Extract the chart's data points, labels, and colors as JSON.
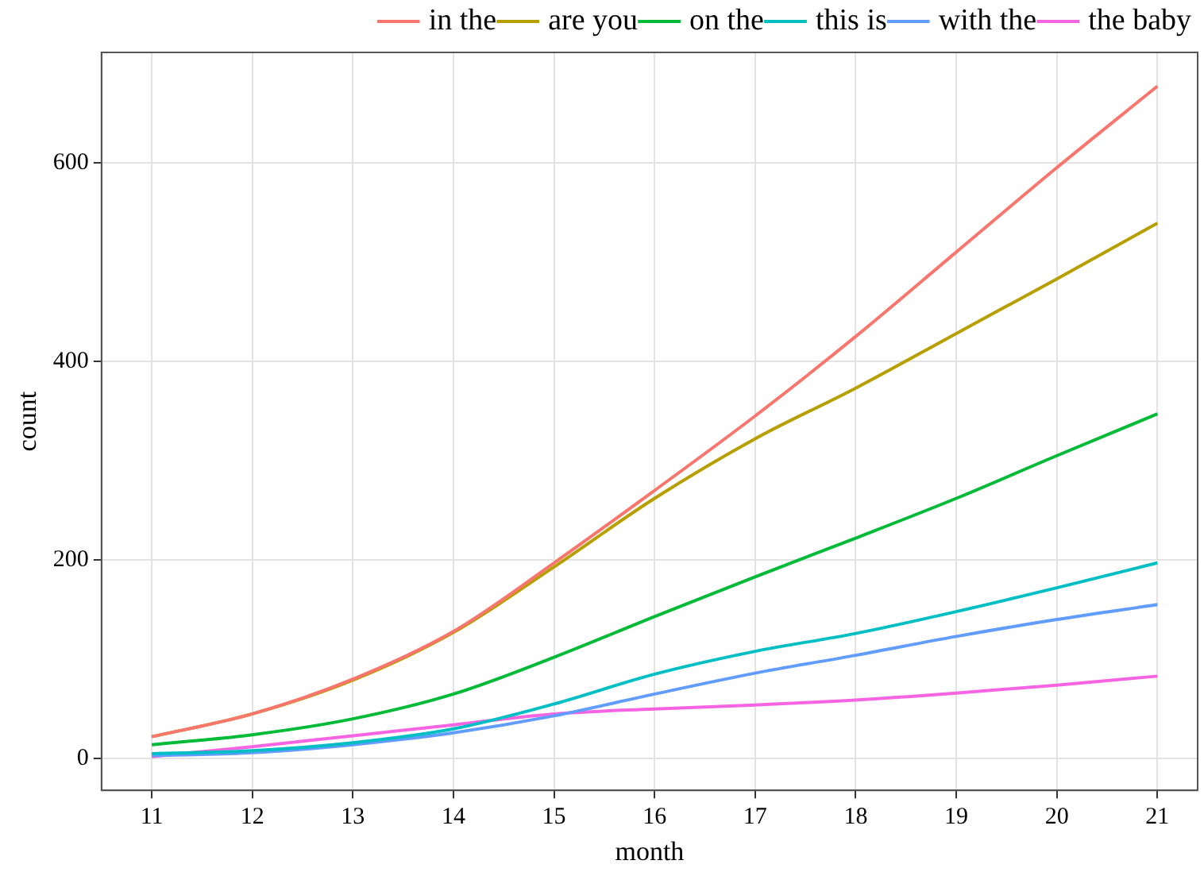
{
  "chart_data": {
    "type": "line",
    "xlabel": "month",
    "ylabel": "count",
    "x": [
      11,
      12,
      13,
      14,
      15,
      16,
      17,
      18,
      19,
      20,
      21
    ],
    "series": [
      {
        "name": "in the",
        "color": "#f8766d",
        "values": [
          22,
          45,
          80,
          128,
          197,
          270,
          345,
          425,
          510,
          595,
          677
        ]
      },
      {
        "name": "are you",
        "color": "#b79f00",
        "values": [
          22,
          45,
          79,
          127,
          193,
          262,
          322,
          373,
          428,
          483,
          539
        ]
      },
      {
        "name": "on the",
        "color": "#00ba38",
        "values": [
          14,
          24,
          40,
          65,
          102,
          143,
          183,
          222,
          262,
          305,
          347
        ]
      },
      {
        "name": "this is",
        "color": "#00bfc4",
        "values": [
          5,
          8,
          16,
          30,
          55,
          85,
          108,
          126,
          148,
          172,
          197
        ]
      },
      {
        "name": "with the",
        "color": "#619cff",
        "values": [
          3,
          6,
          14,
          26,
          43,
          65,
          86,
          104,
          123,
          140,
          155
        ]
      },
      {
        "name": "the baby",
        "color": "#f564e3",
        "values": [
          2,
          12,
          23,
          34,
          45,
          50,
          54,
          59,
          66,
          74,
          83
        ]
      }
    ],
    "xlim": [
      10.5,
      21.4
    ],
    "xticks": [
      11,
      12,
      13,
      14,
      15,
      16,
      17,
      18,
      19,
      20,
      21
    ],
    "ylim": [
      -32,
      711
    ],
    "yticks": [
      0,
      200,
      400,
      600
    ],
    "grid": true,
    "legend": "top",
    "marker": "none",
    "line_style": "solid"
  }
}
